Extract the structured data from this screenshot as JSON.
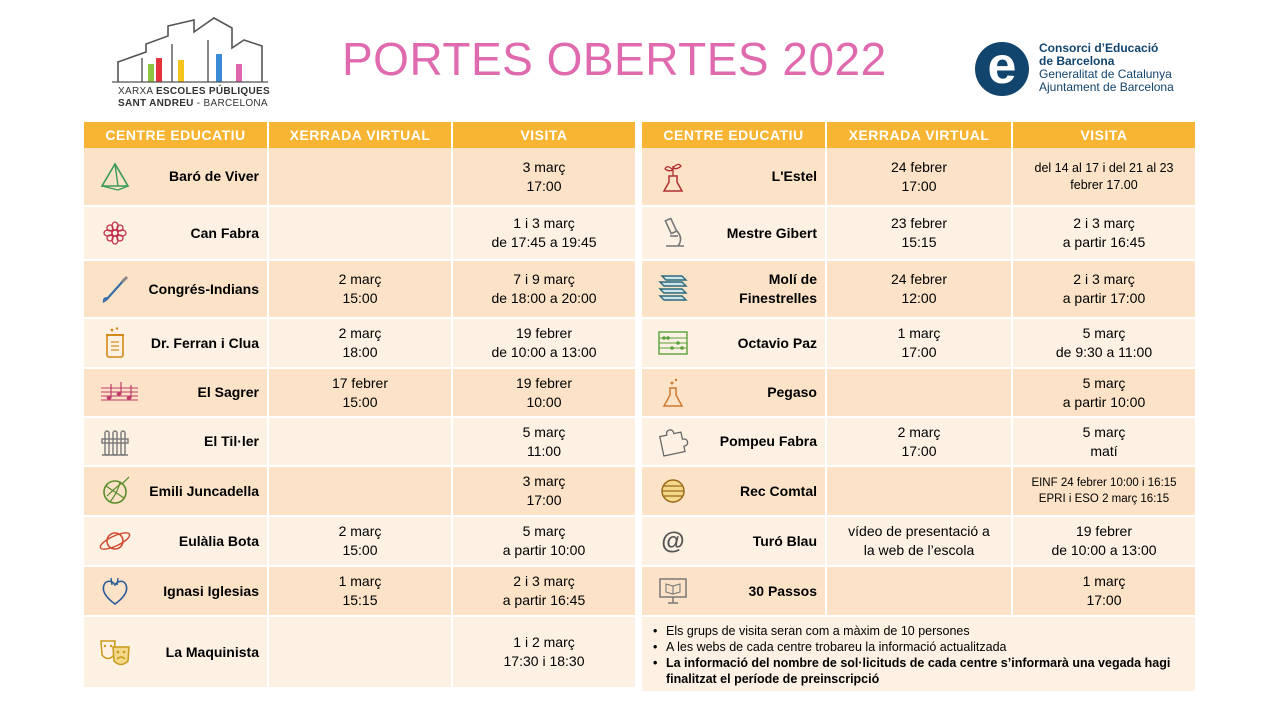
{
  "header": {
    "title": "PORTES OBERTES 2022",
    "left_logo": {
      "line1_a": "XARXA ",
      "line1_b": "ESCOLES PÚBLIQUES",
      "line2_a": "SANT ANDREU",
      "line2_b": " - BARCELONA"
    },
    "right_logo": {
      "mark": "e",
      "line1": "Consorci d’Educació",
      "line2": "de Barcelona",
      "line3": "Generalitat de Catalunya",
      "line4": "Ajuntament de Barcelona"
    }
  },
  "columns": {
    "centre": "CENTRE EDUCATIU",
    "xerrada": "XERRADA VIRTUAL",
    "visita": "VISITA"
  },
  "left_rows": [
    {
      "icon": "pyramid-icon",
      "name": "Baró de Viver",
      "xerrada": [
        "",
        ""
      ],
      "visita": [
        "3 març",
        "17:00"
      ]
    },
    {
      "icon": "flower-icon",
      "name": "Can Fabra",
      "xerrada": [
        "",
        ""
      ],
      "visita": [
        "1 i 3 març",
        "de 17:45 a 19:45"
      ]
    },
    {
      "icon": "paintbrush-icon",
      "name": "Congrés-Indians",
      "xerrada": [
        "2 març",
        "15:00"
      ],
      "visita": [
        "7 i 9 març",
        "de 18:00 a 20:00"
      ]
    },
    {
      "icon": "jar-icon",
      "name": "Dr. Ferran i Clua",
      "xerrada": [
        "2 març",
        "18:00"
      ],
      "visita": [
        "19 febrer",
        "de 10:00 a 13:00"
      ]
    },
    {
      "icon": "music-notes-icon",
      "name": "El Sagrer",
      "xerrada": [
        "17 febrer",
        "15:00"
      ],
      "visita": [
        "19 febrer",
        "10:00"
      ]
    },
    {
      "icon": "test-tubes-icon",
      "name": "El Til·ler",
      "xerrada": [
        "",
        ""
      ],
      "visita": [
        "5 març",
        "11:00"
      ]
    },
    {
      "icon": "yarn-ball-icon",
      "name": "Emili Juncadella",
      "xerrada": [
        "",
        ""
      ],
      "visita": [
        "3 març",
        "17:00"
      ]
    },
    {
      "icon": "planet-icon",
      "name": "Eulàlia Bota",
      "xerrada": [
        "2 març",
        "15:00"
      ],
      "visita": [
        "5 març",
        "a partir 10:00"
      ]
    },
    {
      "icon": "heart-icon",
      "name": "Ignasi Iglesias",
      "xerrada": [
        "1 març",
        "15:15"
      ],
      "visita": [
        "2 i 3 març",
        "a partir 16:45"
      ]
    },
    {
      "icon": "theater-masks-icon",
      "name": "La Maquinista",
      "xerrada": [
        "",
        ""
      ],
      "visita": [
        "1 i 2 març",
        "17:30 i 18:30"
      ]
    }
  ],
  "right_rows": [
    {
      "icon": "plant-flask-icon",
      "name": "L'Estel",
      "xerrada": [
        "24 febrer",
        "17:00"
      ],
      "visita": [
        "del 14 al 17 i del 21 al 23",
        "febrer  17.00"
      ]
    },
    {
      "icon": "microscope-icon",
      "name": "Mestre Gibert",
      "xerrada": [
        "23 febrer",
        "15:15"
      ],
      "visita": [
        "2 i 3 març",
        "a partir 16:45"
      ]
    },
    {
      "icon": "books-icon",
      "name_lines": [
        "Molí de",
        "Finestrelles"
      ],
      "xerrada": [
        "24 febrer",
        "12:00"
      ],
      "visita": [
        "2 i 3 març",
        "a partir 17:00"
      ]
    },
    {
      "icon": "abacus-icon",
      "name": "Octavio Paz",
      "xerrada": [
        "1 març",
        "17:00"
      ],
      "visita": [
        "5 març",
        "de 9:30 a 11:00"
      ]
    },
    {
      "icon": "flask-icon",
      "name": "Pegaso",
      "xerrada": [
        "",
        ""
      ],
      "visita": [
        "5 març",
        "a partir 10:00"
      ]
    },
    {
      "icon": "puzzle-icon",
      "name": "Pompeu Fabra",
      "xerrada": [
        "2 març",
        "17:00"
      ],
      "visita": [
        "5 març",
        "matí"
      ]
    },
    {
      "icon": "jupiter-icon",
      "name": "Rec Comtal",
      "xerrada": [
        "",
        ""
      ],
      "visita": [
        "EINF 24 febrer  10:00 i 16:15",
        "EPRI i ESO 2 març 16:15"
      ]
    },
    {
      "icon": "at-sign-icon",
      "name": "Turó Blau",
      "xerrada": [
        "vídeo de presentació a",
        "la web de l’escola"
      ],
      "visita": [
        "19 febrer",
        "de 10:00 a 13:00"
      ]
    },
    {
      "icon": "monitor-book-icon",
      "name": "30 Passos",
      "xerrada": [
        "",
        ""
      ],
      "visita": [
        "1 març",
        "17:00"
      ]
    }
  ],
  "notes": [
    "Els grups de visita seran com a màxim de 10 persones",
    "A les webs de cada centre trobareu la informació actualitzada",
    "La informació del nombre de sol·licituds de cada centre s’informarà una vegada hagi finalitzat el període de preinscripció"
  ],
  "colors": {
    "title": "#e06aae",
    "header_bg": "#f8b533",
    "row_dark": "#fce3c8",
    "row_light": "#fdf1e3",
    "consorci_blue": "#12456e"
  }
}
